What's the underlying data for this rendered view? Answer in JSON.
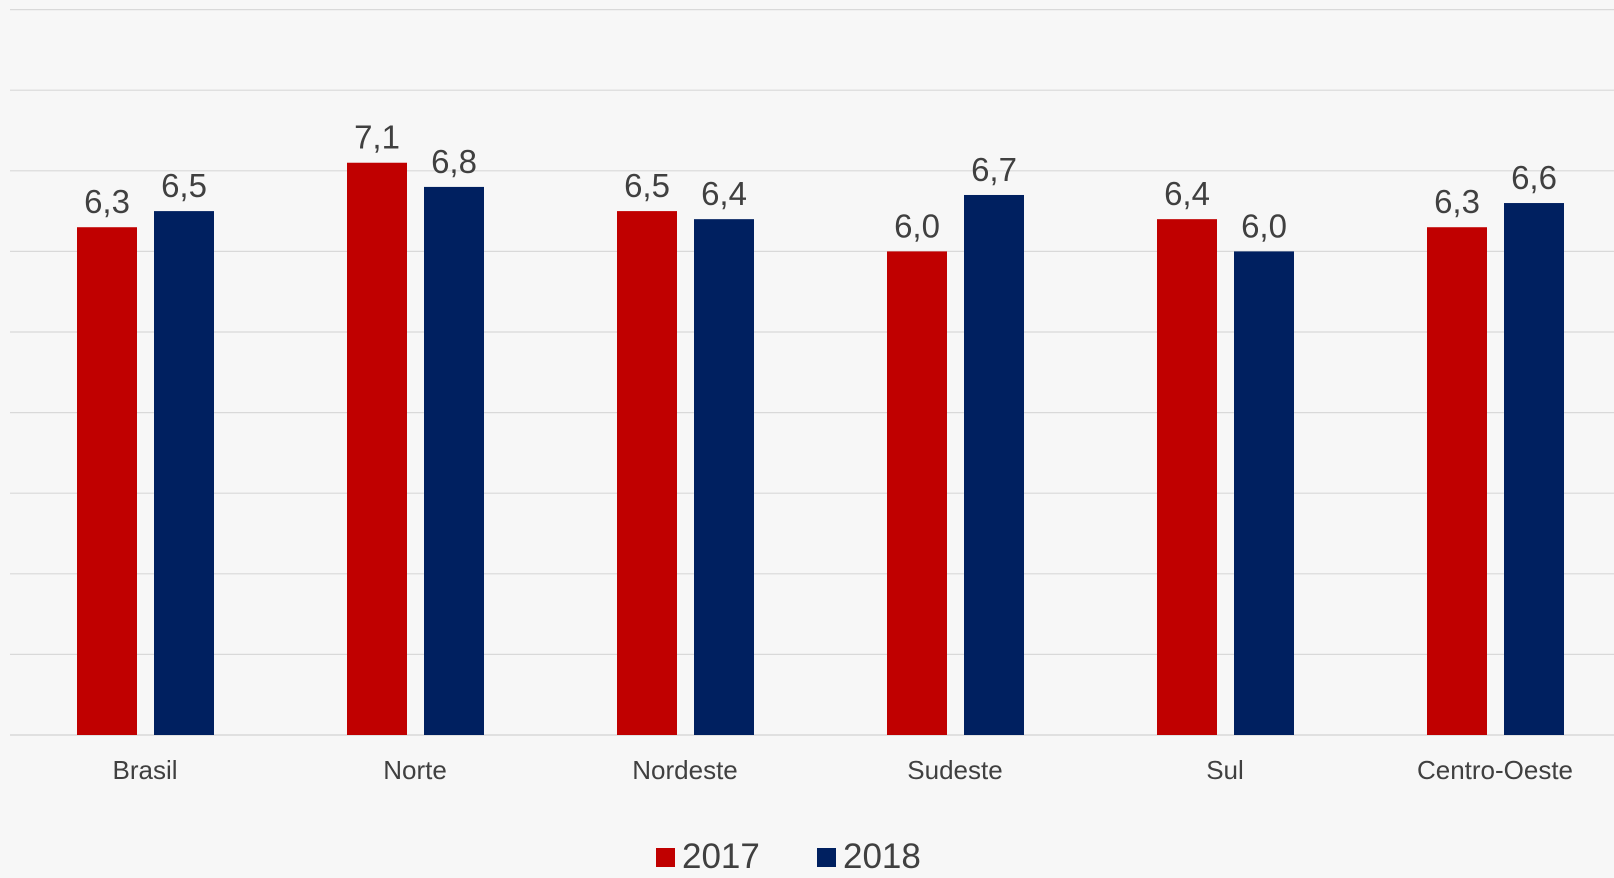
{
  "chart_data": {
    "type": "bar",
    "categories": [
      "Brasil",
      "Norte",
      "Nordeste",
      "Sudeste",
      "Sul",
      "Centro-Oeste"
    ],
    "series": [
      {
        "name": "2017",
        "values": [
          6.3,
          7.1,
          6.5,
          6.0,
          6.4,
          6.3
        ],
        "labels": [
          "6,3",
          "7,1",
          "6,5",
          "6,0",
          "6,4",
          "6,3"
        ],
        "color": "#c00000"
      },
      {
        "name": "2018",
        "values": [
          6.5,
          6.8,
          6.4,
          6.7,
          6.0,
          6.6
        ],
        "labels": [
          "6,5",
          "6,8",
          "6,4",
          "6,7",
          "6,0",
          "6,6"
        ],
        "color": "#002060"
      }
    ],
    "title": "",
    "xlabel": "",
    "ylabel": "",
    "ylim": [
      0,
      9
    ],
    "grid": true,
    "legend": "bottom-center",
    "colors": {
      "background": "#f7f7f7",
      "grid": "#d9d9d9",
      "text": "#404040"
    }
  }
}
